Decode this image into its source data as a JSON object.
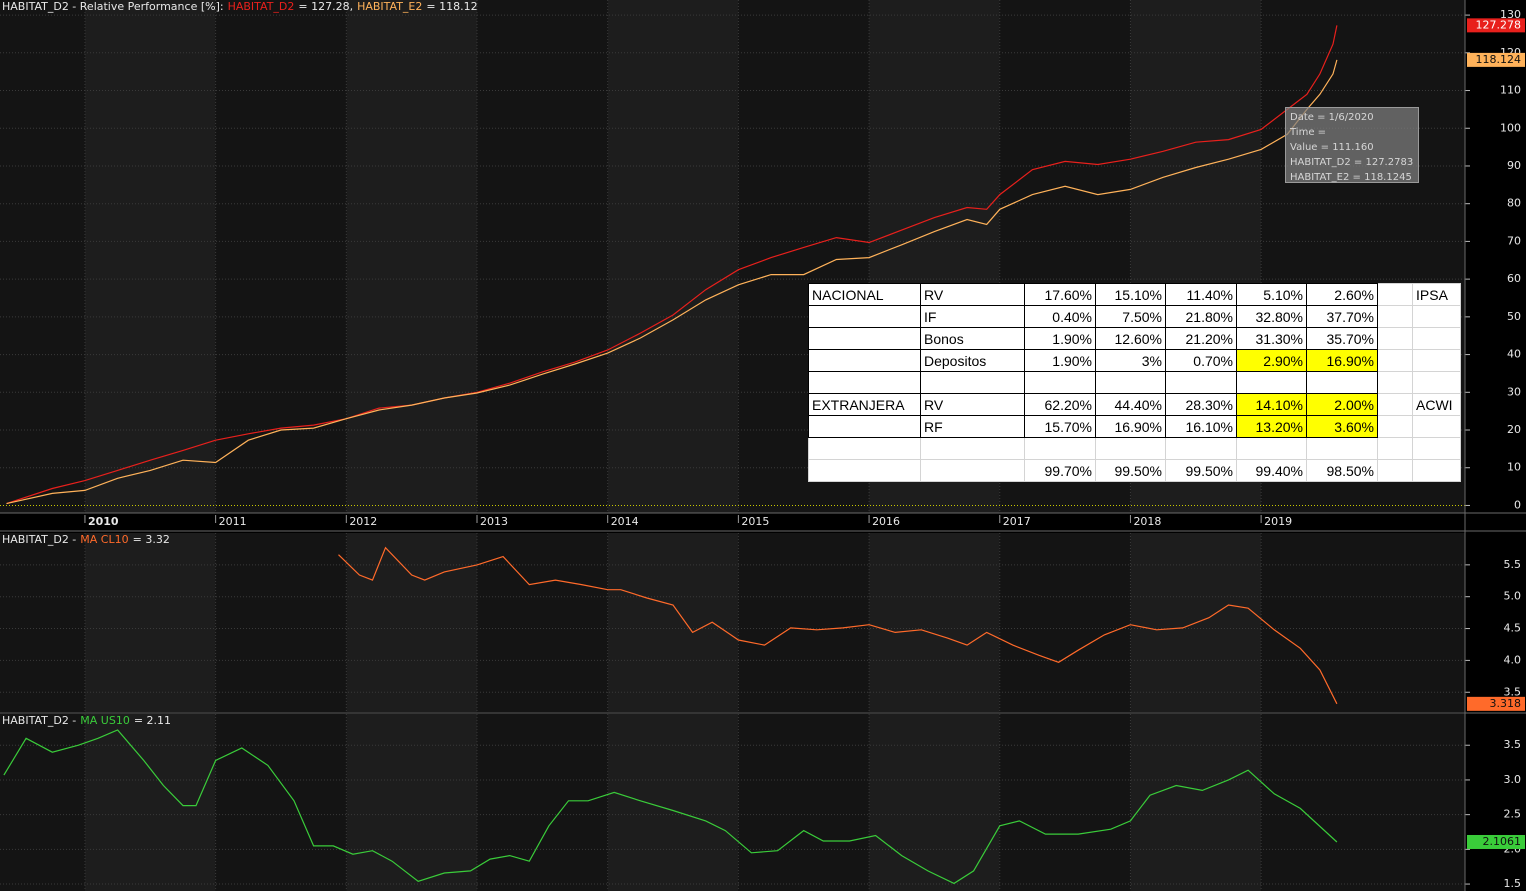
{
  "chart_data": [
    {
      "type": "line",
      "title": "HABITAT_D2 - Relative Performance [%]:",
      "x": [
        2009.4,
        2009.75,
        2010,
        2010.25,
        2010.5,
        2010.75,
        2011,
        2011.25,
        2011.5,
        2011.75,
        2012,
        2012.25,
        2012.5,
        2012.75,
        2013,
        2013.25,
        2013.5,
        2013.75,
        2014,
        2014.25,
        2014.5,
        2014.75,
        2015,
        2015.25,
        2015.5,
        2015.75,
        2016,
        2016.25,
        2016.5,
        2016.75,
        2016.9,
        2017,
        2017.25,
        2017.5,
        2017.75,
        2018,
        2018.25,
        2018.5,
        2018.75,
        2019,
        2019.2,
        2019.35,
        2019.45,
        2019.55,
        2019.58
      ],
      "series": [
        {
          "name": "HABITAT_D2",
          "legend_text": "= 127.28,",
          "color": "#e8201c",
          "values": [
            0.5,
            4.5,
            6.6,
            9.3,
            12,
            14.6,
            17.3,
            19,
            20.5,
            21.3,
            23,
            25.8,
            26.6,
            28.5,
            30,
            32.4,
            35.4,
            38,
            41.2,
            45.7,
            50.5,
            57.2,
            62.5,
            65.7,
            68.4,
            71,
            69.7,
            73,
            76.3,
            79,
            78.5,
            82.4,
            89,
            91.2,
            90.4,
            91.8,
            93.9,
            96.3,
            97,
            99.7,
            105,
            109,
            114.4,
            122.3,
            127.278
          ]
        },
        {
          "name": "HABITAT_E2",
          "legend_text": "= 118.12",
          "color": "#ffb25a",
          "values": [
            0.5,
            3.2,
            4,
            7.2,
            9.3,
            12,
            11.4,
            17.3,
            20,
            20.5,
            23,
            25.3,
            26.6,
            28.5,
            29.8,
            31.9,
            34.8,
            37.5,
            40.4,
            44.4,
            49.2,
            54.5,
            58.5,
            61.2,
            61.2,
            65.2,
            65.7,
            69.1,
            72.6,
            75.8,
            74.5,
            78.5,
            82.4,
            84.6,
            82.4,
            83.8,
            87,
            89.6,
            91.8,
            94.4,
            98.4,
            105,
            109,
            114.4,
            118.124
          ]
        }
      ],
      "xlim": [
        2009.35,
        2020.56
      ],
      "xticks": [
        2010,
        2011,
        2012,
        2013,
        2014,
        2015,
        2016,
        2017,
        2018,
        2019
      ],
      "ylim": [
        -2,
        134
      ],
      "yticks": [
        0,
        10,
        20,
        30,
        40,
        50,
        60,
        70,
        80,
        90,
        100,
        110,
        120,
        130
      ],
      "grid": true
    },
    {
      "type": "line",
      "title": "HABITAT_D2 -",
      "x": [
        2011.94,
        2012.1,
        2012.2,
        2012.3,
        2012.5,
        2012.6,
        2012.75,
        2013,
        2013.2,
        2013.4,
        2013.6,
        2013.8,
        2014,
        2014.1,
        2014.3,
        2014.5,
        2014.65,
        2014.8,
        2015,
        2015.2,
        2015.4,
        2015.6,
        2015.8,
        2016,
        2016.2,
        2016.4,
        2016.6,
        2016.75,
        2016.9,
        2017.1,
        2017.3,
        2017.45,
        2017.6,
        2017.8,
        2018,
        2018.2,
        2018.4,
        2018.6,
        2018.75,
        2018.9,
        2019.1,
        2019.3,
        2019.45,
        2019.58
      ],
      "series": [
        {
          "name": "MA CL10",
          "legend_text": "= 3.32",
          "color": "#ff6a2a",
          "values": [
            5.66,
            5.34,
            5.26,
            5.77,
            5.34,
            5.26,
            5.39,
            5.5,
            5.63,
            5.19,
            5.26,
            5.19,
            5.11,
            5.11,
            4.98,
            4.87,
            4.44,
            4.6,
            4.32,
            4.24,
            4.51,
            4.48,
            4.51,
            4.56,
            4.44,
            4.48,
            4.35,
            4.24,
            4.44,
            4.24,
            4.08,
            3.97,
            4.16,
            4.4,
            4.56,
            4.48,
            4.51,
            4.67,
            4.87,
            4.82,
            4.48,
            4.19,
            3.85,
            3.318
          ]
        }
      ],
      "xlim": [
        2009.35,
        2020.56
      ],
      "xticks": [
        2010,
        2011,
        2012,
        2013,
        2014,
        2015,
        2016,
        2017,
        2018,
        2019
      ],
      "ylim": [
        3.19,
        6.0
      ],
      "yticks": [
        3.5,
        {
          "value": 4,
          "label": "4.0"
        },
        4.5,
        {
          "value": 5,
          "label": "5.0"
        },
        5.5
      ],
      "grid": true
    },
    {
      "type": "line",
      "title": "HABITAT_D2 -",
      "x": [
        2009.38,
        2009.55,
        2009.75,
        2009.95,
        2010.1,
        2010.25,
        2010.45,
        2010.6,
        2010.75,
        2010.85,
        2011,
        2011.2,
        2011.4,
        2011.6,
        2011.75,
        2011.9,
        2012.05,
        2012.2,
        2012.35,
        2012.55,
        2012.75,
        2012.95,
        2013.1,
        2013.25,
        2013.4,
        2013.55,
        2013.7,
        2013.85,
        2014.05,
        2014.25,
        2014.5,
        2014.75,
        2014.9,
        2015.1,
        2015.3,
        2015.5,
        2015.65,
        2015.85,
        2016.05,
        2016.25,
        2016.45,
        2016.65,
        2016.8,
        2017,
        2017.15,
        2017.35,
        2017.6,
        2017.85,
        2018,
        2018.15,
        2018.35,
        2018.55,
        2018.75,
        2018.9,
        2019.1,
        2019.3,
        2019.58
      ],
      "series": [
        {
          "name": "MA US10",
          "legend_text": "= 2.11",
          "color": "#3acc3a",
          "values": [
            3.07,
            3.6,
            3.4,
            3.5,
            3.6,
            3.72,
            3.28,
            2.92,
            2.63,
            2.63,
            3.28,
            3.46,
            3.21,
            2.7,
            2.05,
            2.05,
            1.93,
            1.98,
            1.83,
            1.54,
            1.66,
            1.69,
            1.86,
            1.91,
            1.83,
            2.34,
            2.7,
            2.7,
            2.82,
            2.7,
            2.56,
            2.41,
            2.27,
            1.95,
            1.98,
            2.27,
            2.12,
            2.12,
            2.2,
            1.91,
            1.69,
            1.51,
            1.69,
            2.34,
            2.41,
            2.22,
            2.22,
            2.29,
            2.41,
            2.78,
            2.92,
            2.85,
            3.0,
            3.14,
            2.8,
            2.59,
            2.1061
          ]
        }
      ],
      "xlim": [
        2009.35,
        2020.56
      ],
      "xticks": [
        2010,
        2011,
        2012,
        2013,
        2014,
        2015,
        2016,
        2017,
        2018,
        2019
      ],
      "ylim": [
        1.4,
        3.95
      ],
      "yticks": [
        1.5,
        {
          "value": 2,
          "label": "2.0"
        },
        2.5,
        {
          "value": 3,
          "label": "3.0"
        },
        3.5
      ],
      "grid": true
    }
  ],
  "tooltip": {
    "lines": [
      "Date = 1/6/2020",
      "Time =",
      "Value = 111.160",
      "HABITAT_D2 = 127.2783",
      "HABITAT_E2 = 118.1245"
    ]
  },
  "table": {
    "rows": [
      [
        "NACIONAL",
        "RV",
        "17.60%",
        "15.10%",
        "11.40%",
        "5.10%",
        "2.60%",
        null,
        "IPSA"
      ],
      [
        null,
        "IF",
        "0.40%",
        "7.50%",
        "21.80%",
        "32.80%",
        "37.70%",
        null,
        null
      ],
      [
        null,
        "Bonos",
        "1.90%",
        "12.60%",
        "21.20%",
        "31.30%",
        "35.70%",
        null,
        null
      ],
      [
        null,
        "Depositos",
        "1.90%",
        "3%",
        "0.70%",
        "2.90%",
        "16.90%",
        null,
        null
      ],
      [
        null,
        null,
        null,
        null,
        null,
        null,
        null,
        null,
        null
      ],
      [
        "EXTRANJERA",
        "RV",
        "62.20%",
        "44.40%",
        "28.30%",
        "14.10%",
        "2.00%",
        null,
        "ACWI"
      ],
      [
        null,
        "RF",
        "15.70%",
        "16.90%",
        "16.10%",
        "13.20%",
        "3.60%",
        null,
        null
      ],
      [
        null,
        null,
        null,
        null,
        null,
        null,
        null,
        null,
        null
      ],
      [
        null,
        null,
        "99.70%",
        "99.50%",
        "99.50%",
        "99.40%",
        "98.50%",
        null,
        null
      ]
    ],
    "highlighted": [
      [
        3,
        5
      ],
      [
        3,
        6
      ],
      [
        5,
        5
      ],
      [
        5,
        6
      ],
      [
        6,
        5
      ],
      [
        6,
        6
      ]
    ],
    "highlight_color": "#ffff00"
  }
}
